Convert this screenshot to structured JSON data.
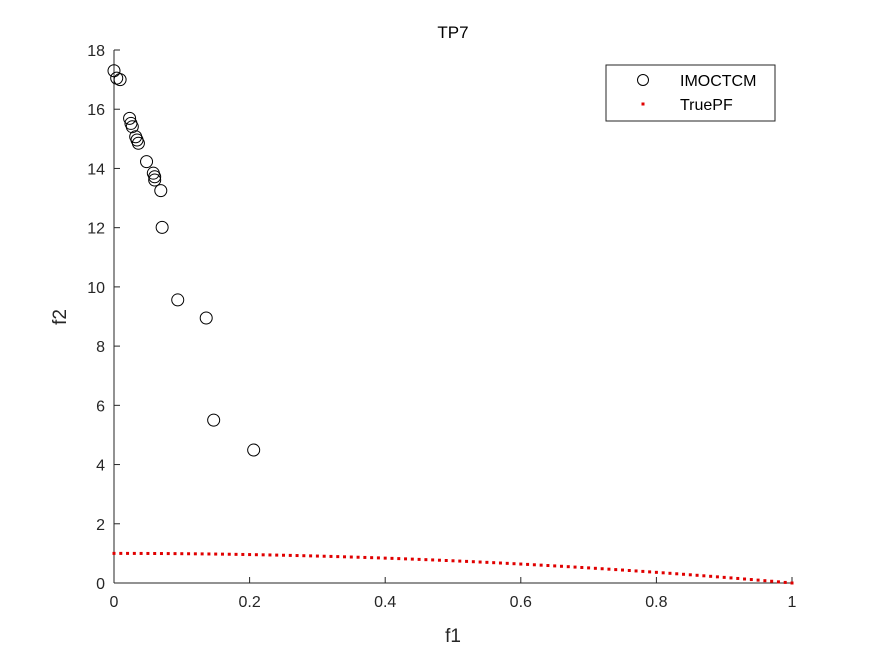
{
  "chart_data": {
    "type": "scatter",
    "title": "TP7",
    "xlabel": "f1",
    "ylabel": "f2",
    "xlim": [
      0,
      1
    ],
    "ylim": [
      0,
      18
    ],
    "xticks": [
      "0",
      "0.2",
      "0.4",
      "0.6",
      "0.8",
      "1"
    ],
    "xtick_values": [
      0,
      0.2,
      0.4,
      0.6,
      0.8,
      1
    ],
    "yticks": [
      "0",
      "2",
      "4",
      "6",
      "8",
      "10",
      "12",
      "14",
      "16",
      "18"
    ],
    "ytick_values": [
      0,
      2,
      4,
      6,
      8,
      10,
      12,
      14,
      16,
      18
    ],
    "grid": false,
    "legend_position": "top-right",
    "series": [
      {
        "name": "IMOCTCM",
        "marker": "open-circle",
        "color": "#000000",
        "x": [
          0.0,
          0.004,
          0.009,
          0.023,
          0.025,
          0.027,
          0.032,
          0.034,
          0.036,
          0.048,
          0.058,
          0.06,
          0.06,
          0.069,
          0.071,
          0.094,
          0.136,
          0.147,
          0.206
        ],
        "y": [
          17.3,
          17.05,
          17.0,
          15.69,
          15.52,
          15.41,
          15.07,
          14.96,
          14.85,
          14.23,
          13.84,
          13.72,
          13.61,
          13.25,
          12.01,
          9.56,
          8.95,
          5.5,
          4.49
        ]
      },
      {
        "name": "TruePF",
        "marker": "dot",
        "color": "#e00000",
        "x": [
          0,
          0.01,
          0.02,
          0.03,
          0.04,
          0.05,
          0.06,
          0.07,
          0.08,
          0.09,
          0.1,
          0.11,
          0.12,
          0.13,
          0.14,
          0.15,
          0.16,
          0.17,
          0.18,
          0.19,
          0.2,
          0.21,
          0.22,
          0.23,
          0.24,
          0.25,
          0.26,
          0.27,
          0.28,
          0.29,
          0.3,
          0.31,
          0.32,
          0.33,
          0.34,
          0.35,
          0.36,
          0.37,
          0.38,
          0.39,
          0.4,
          0.41,
          0.42,
          0.43,
          0.44,
          0.45,
          0.46,
          0.47,
          0.48,
          0.49,
          0.5,
          0.51,
          0.52,
          0.53,
          0.54,
          0.55,
          0.56,
          0.57,
          0.58,
          0.59,
          0.6,
          0.61,
          0.62,
          0.63,
          0.64,
          0.65,
          0.66,
          0.67,
          0.68,
          0.69,
          0.7,
          0.71,
          0.72,
          0.73,
          0.74,
          0.75,
          0.76,
          0.77,
          0.78,
          0.79,
          0.8,
          0.81,
          0.82,
          0.83,
          0.84,
          0.85,
          0.86,
          0.87,
          0.88,
          0.89,
          0.9,
          0.91,
          0.92,
          0.93,
          0.94,
          0.95,
          0.96,
          0.97,
          0.98,
          0.99,
          1
        ],
        "y": [
          1,
          0.9999,
          0.9996,
          0.9991,
          0.9984,
          0.9975,
          0.9964,
          0.9951,
          0.9936,
          0.9919,
          0.99,
          0.9879,
          0.9856,
          0.9831,
          0.9804,
          0.9775,
          0.9744,
          0.9711,
          0.9676,
          0.9639,
          0.96,
          0.9559,
          0.9516,
          0.9471,
          0.9424,
          0.9375,
          0.9324,
          0.9271,
          0.9216,
          0.9159,
          0.91,
          0.9039,
          0.8976,
          0.8911,
          0.8844,
          0.8775,
          0.8704,
          0.8631,
          0.8556,
          0.8479,
          0.84,
          0.8319,
          0.8236,
          0.8151,
          0.8064,
          0.7975,
          0.7884,
          0.7791,
          0.7696,
          0.7599,
          0.75,
          0.7399,
          0.7296,
          0.7191,
          0.7084,
          0.6975,
          0.6864,
          0.6751,
          0.6636,
          0.6519,
          0.64,
          0.6279,
          0.6156,
          0.6031,
          0.5904,
          0.5775,
          0.5644,
          0.5511,
          0.5376,
          0.5239,
          0.51,
          0.4959,
          0.4816,
          0.4671,
          0.4524,
          0.4375,
          0.4224,
          0.4071,
          0.3916,
          0.3759,
          0.36,
          0.3439,
          0.3276,
          0.3111,
          0.2944,
          0.2775,
          0.2604,
          0.2431,
          0.2256,
          0.2079,
          0.19,
          0.1719,
          0.1536,
          0.1351,
          0.1164,
          0.0975,
          0.0784,
          0.0591,
          0.0396,
          0.0199,
          0
        ]
      }
    ]
  }
}
